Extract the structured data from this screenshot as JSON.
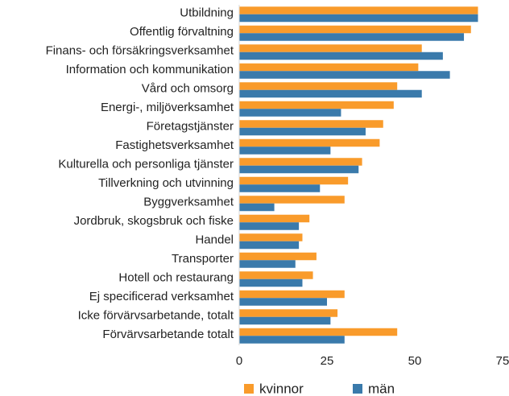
{
  "chart_data": {
    "type": "bar",
    "orientation": "horizontal",
    "categories": [
      "Utbildning",
      "Offentlig förvaltning",
      "Finans- och försäkringsverksamhet",
      "Information och kommunikation",
      "Vård och omsorg",
      "Energi-, miljöverksamhet",
      "Företagstjänster",
      "Fastighetsverksamhet",
      "Kulturella och personliga tjänster",
      "Tillverkning och utvinning",
      "Byggverksamhet",
      "Jordbruk, skogsbruk och fiske",
      "Handel",
      "Transporter",
      "Hotell och restaurang",
      "Ej specificerad verksamhet",
      "Icke förvärvsarbetande, totalt",
      "Förvärvsarbetande totalt"
    ],
    "series": [
      {
        "name": "kvinnor",
        "color": "#f99b2b",
        "values": [
          68,
          66,
          52,
          51,
          45,
          44,
          41,
          40,
          35,
          31,
          30,
          20,
          18,
          22,
          21,
          30,
          28,
          45
        ]
      },
      {
        "name": "män",
        "color": "#3a7aab",
        "values": [
          68,
          64,
          58,
          60,
          52,
          29,
          36,
          26,
          34,
          23,
          10,
          17,
          17,
          16,
          18,
          25,
          26,
          30
        ]
      }
    ],
    "xlim": [
      0,
      75
    ],
    "xticks": [
      0,
      25,
      50,
      75
    ],
    "grid": false,
    "legend": "bottom"
  }
}
